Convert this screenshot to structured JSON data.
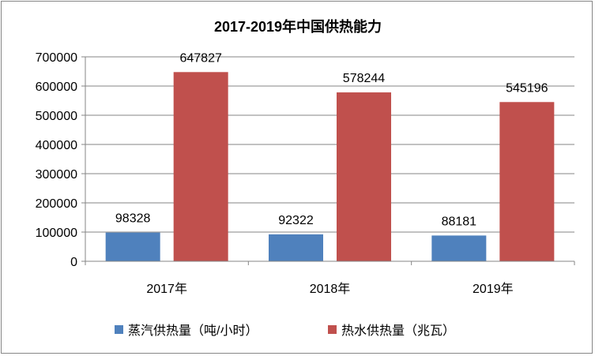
{
  "chart_data": {
    "type": "bar",
    "title": "2017-2019年中国供热能力",
    "categories": [
      "2017年",
      "2018年",
      "2019年"
    ],
    "series": [
      {
        "name": "蒸汽供热量（吨/小时）",
        "values": [
          98328,
          92322,
          88181
        ],
        "color": "#4f81bd"
      },
      {
        "name": "热水供热量（兆瓦）",
        "values": [
          647827,
          578244,
          545196
        ],
        "color": "#c0504d"
      }
    ],
    "yticks": [
      0,
      100000,
      200000,
      300000,
      400000,
      500000,
      600000,
      700000
    ],
    "ylim": [
      0,
      700000
    ],
    "grid": true,
    "legend_position": "bottom",
    "data_labels": true
  }
}
